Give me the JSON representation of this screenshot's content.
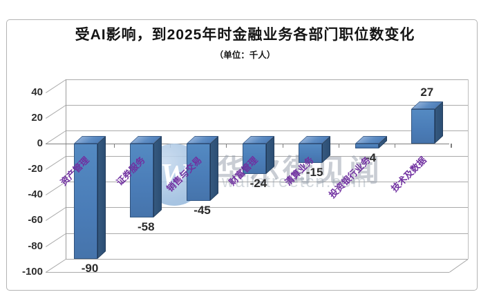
{
  "title": "受AI影响，到2025年时金融业务各部门职位数变化",
  "subtitle": "（单位：千人）",
  "watermark": {
    "logo_letter": "W",
    "brand": "华尔街见闻",
    "domain": "wallstreetcn.com"
  },
  "chart_data": {
    "type": "bar",
    "style": "3d-column",
    "title": "受AI影响，到2025年时金融业务各部门职位数变化",
    "unit_label": "千人",
    "categories": [
      "资产管理",
      "证券服务",
      "销售与交易",
      "财富管理",
      "清算业务",
      "投资银行业务",
      "技术及数据"
    ],
    "values": [
      -90,
      -58,
      -45,
      -24,
      -15,
      -4,
      27
    ],
    "yticks": [
      40,
      20,
      0,
      -20,
      -40,
      -60,
      -80,
      -100
    ],
    "ylim": [
      -100,
      40
    ],
    "grid": "on",
    "legend": "none",
    "bar_front_color": "#4A7CB7",
    "bar_top_color": "#6D97C9",
    "bar_side_color": "#2C4E74",
    "category_label_color": "#7030A0",
    "gridline_color": "#A9A9A9"
  }
}
